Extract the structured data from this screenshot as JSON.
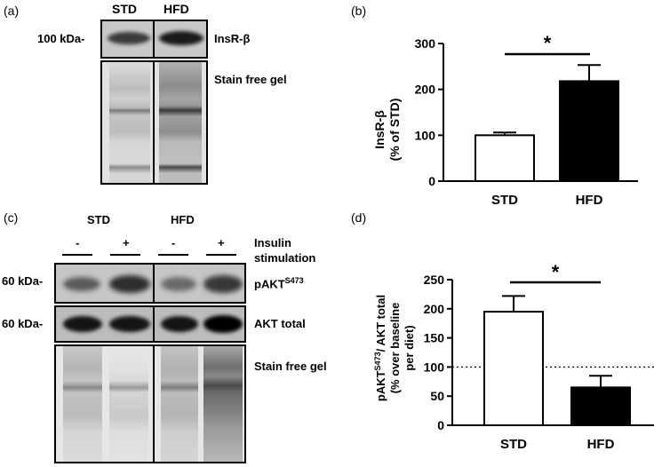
{
  "panel_a": {
    "panel_label": "(a)",
    "groups": [
      "STD",
      "HFD"
    ],
    "marker": "100 kDa-",
    "blot_label": "InsR-β",
    "stain_label": "Stain free gel"
  },
  "panel_c": {
    "panel_label": "(c)",
    "groups": [
      "STD",
      "HFD"
    ],
    "signs": [
      "-",
      "+",
      "-",
      "+"
    ],
    "insulin_label_1": "Insulin",
    "insulin_label_2": "stimulation",
    "marker_1": "60 kDa-",
    "marker_2": "60 kDa-",
    "pakt_label": "pAKT",
    "pakt_sup": "S473",
    "akt_label": "AKT total",
    "stain_label": "Stain free gel"
  },
  "chart_b": {
    "panel_label": "(b)",
    "ylabel_1": "InsR-β",
    "ylabel_2": "(% of STD)",
    "significance": "*"
  },
  "chart_d": {
    "panel_label": "(d)",
    "ylabel_1a": "pAKT",
    "ylabel_1sup": "S473",
    "ylabel_1b": "/ AKT total",
    "ylabel_2": "(% over baseline",
    "ylabel_3": "per diet)",
    "significance": "*"
  },
  "chart_data": [
    {
      "type": "bar",
      "categories": [
        "STD",
        "HFD"
      ],
      "values": [
        100,
        218
      ],
      "errors": [
        6,
        35
      ],
      "ylim": [
        0,
        300
      ],
      "yticks": [
        "0",
        "100",
        "200",
        "300"
      ],
      "bar_colors": [
        "#ffffff",
        "#000000"
      ],
      "significance": "*"
    },
    {
      "type": "bar",
      "categories": [
        "STD",
        "HFD"
      ],
      "values": [
        195,
        65
      ],
      "errors": [
        27,
        20
      ],
      "ylim": [
        0,
        250
      ],
      "yticks": [
        "0",
        "50",
        "100",
        "150",
        "200",
        "250"
      ],
      "baseline": 100,
      "bar_colors": [
        "#ffffff",
        "#000000"
      ],
      "significance": "*"
    }
  ]
}
